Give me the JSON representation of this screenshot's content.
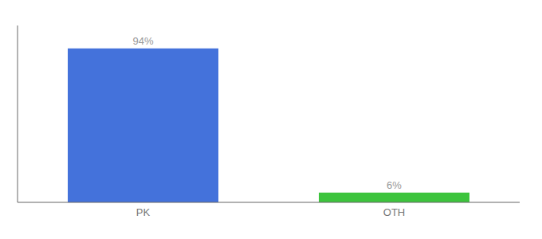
{
  "chart_data": {
    "type": "bar",
    "categories": [
      "PK",
      "OTH"
    ],
    "values": [
      94,
      6
    ],
    "value_labels": [
      "94%",
      "6%"
    ],
    "colors": [
      "#4472db",
      "#3dc43d"
    ],
    "ylim": [
      0,
      108
    ],
    "data_labels": true,
    "tick_labels": "x",
    "grid": false
  }
}
